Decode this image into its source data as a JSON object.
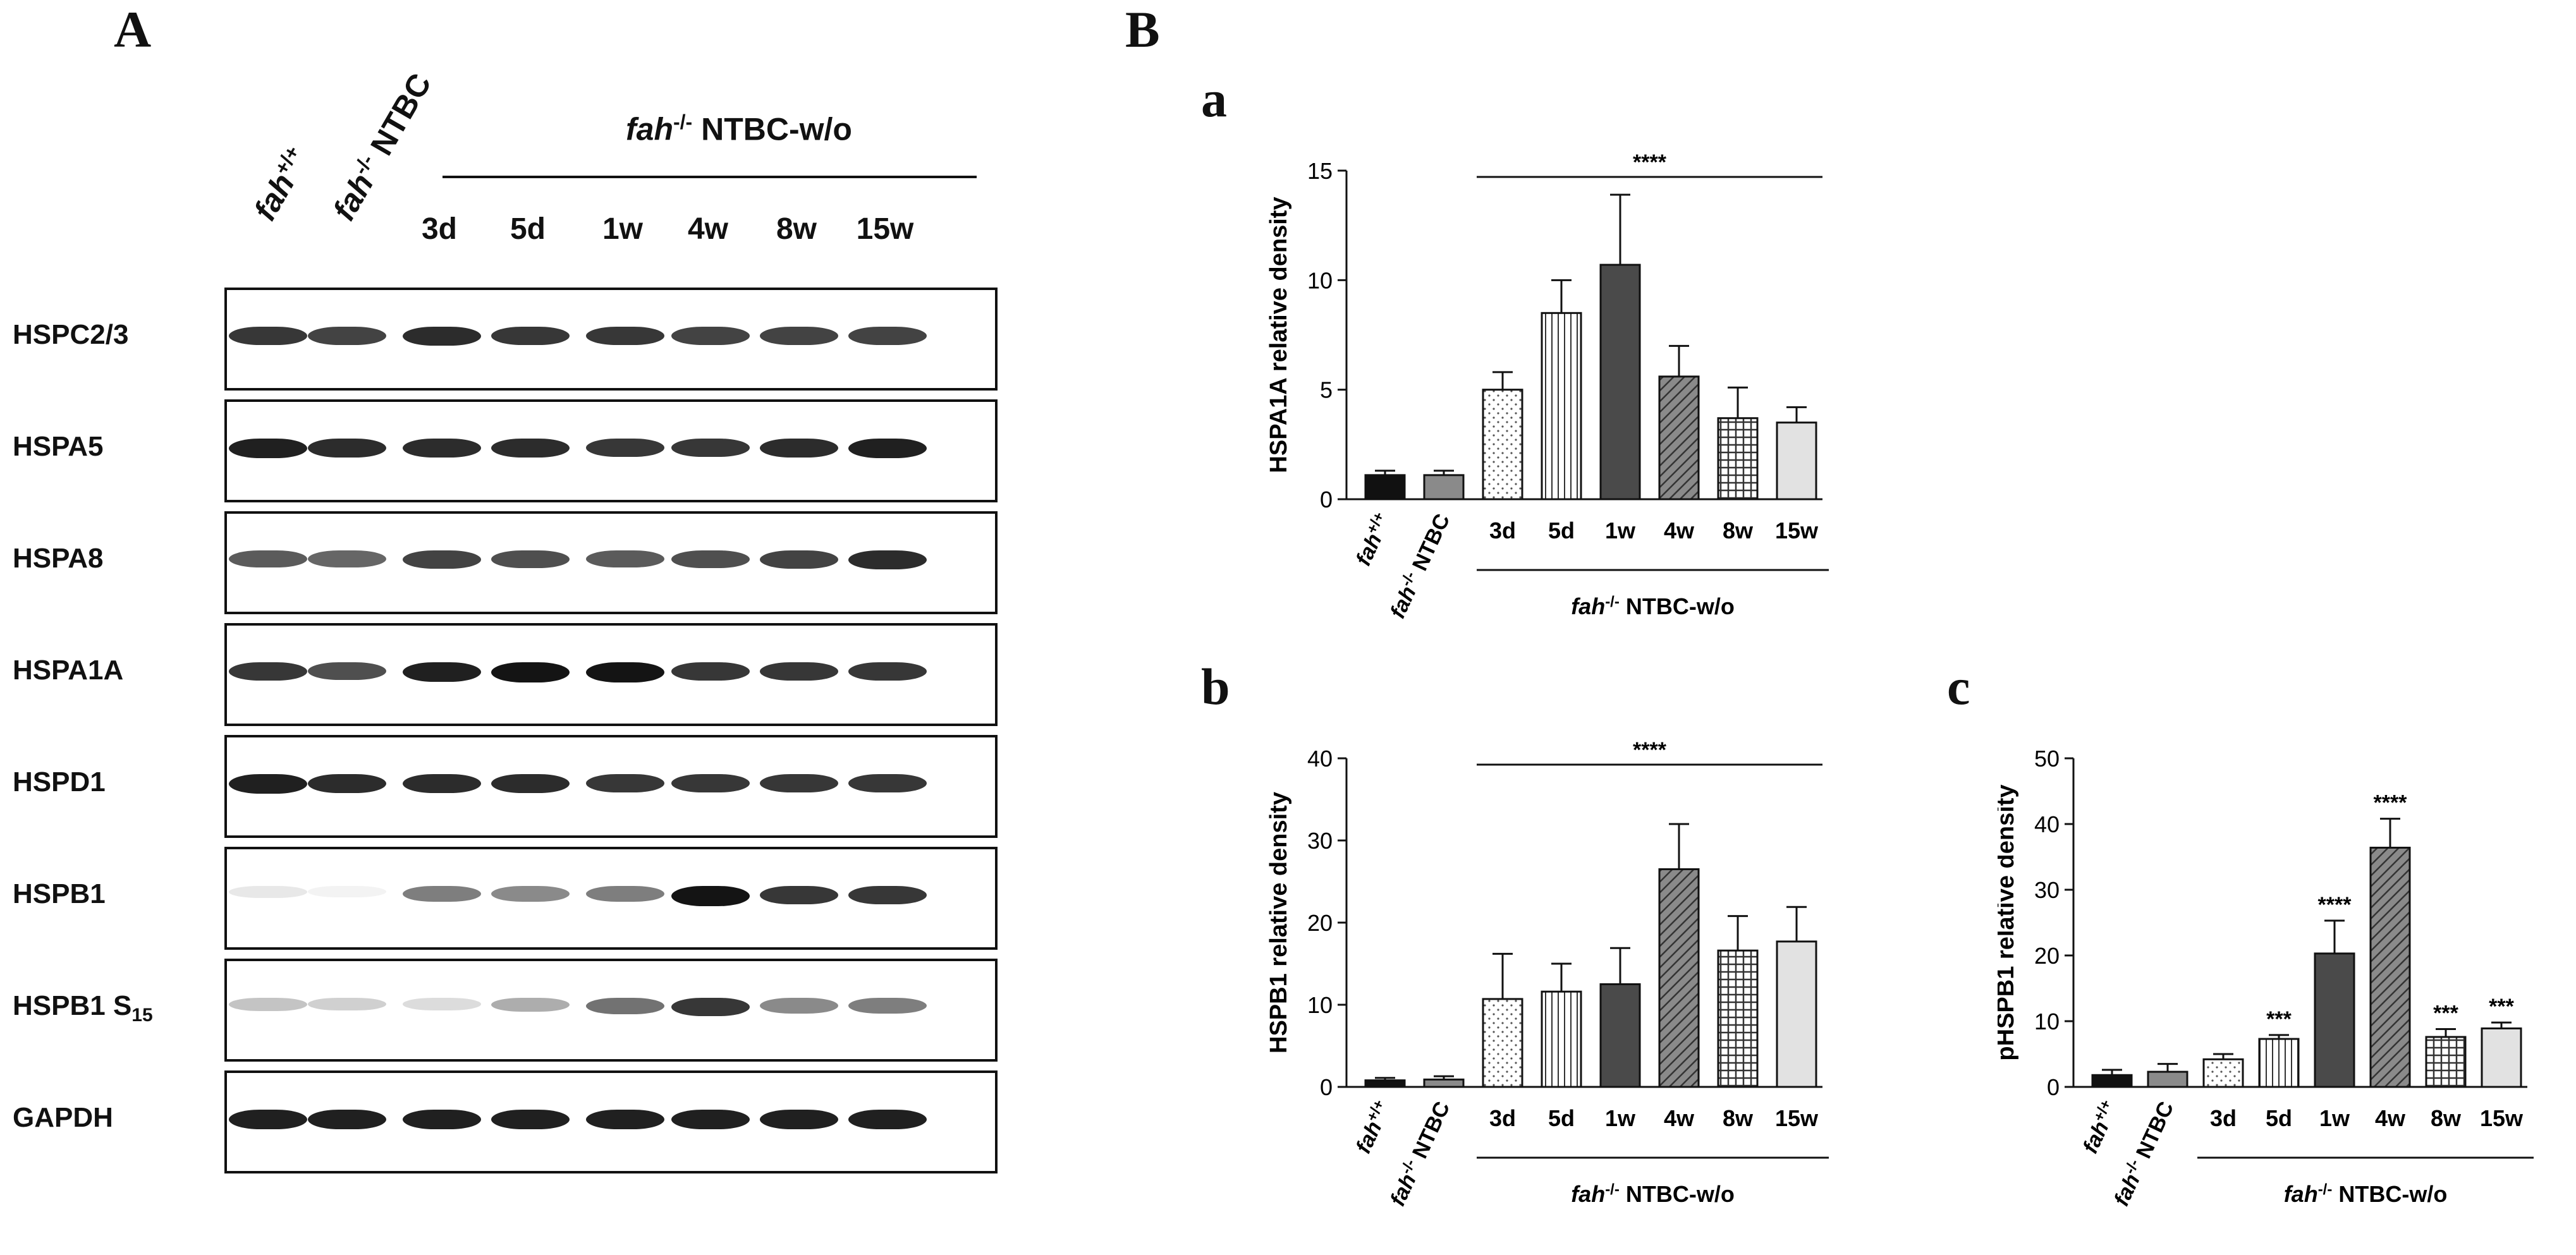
{
  "panel_labels": {
    "A": "A",
    "B": "B",
    "a": "a",
    "b": "b",
    "c": "c"
  },
  "blot": {
    "lane_labels": [
      "fah+/+",
      "fah-/- NTBC"
    ],
    "group_label": "fah-/- NTBC-w/o",
    "timepoints": [
      "3d",
      "5d",
      "1w",
      "4w",
      "8w",
      "15w"
    ],
    "proteins": [
      "HSPC2/3",
      "HSPA5",
      "HSPA8",
      "HSPA1A",
      "HSPD1",
      "HSPB1",
      "HSPB1 S15",
      "GAPDH"
    ],
    "band_intensity": [
      [
        0.85,
        0.8,
        0.9,
        0.85,
        0.85,
        0.8,
        0.8,
        0.8
      ],
      [
        0.95,
        0.9,
        0.9,
        0.9,
        0.85,
        0.85,
        0.9,
        0.95
      ],
      [
        0.7,
        0.65,
        0.8,
        0.75,
        0.7,
        0.75,
        0.8,
        0.9
      ],
      [
        0.85,
        0.75,
        0.95,
        1.0,
        1.0,
        0.85,
        0.85,
        0.85
      ],
      [
        0.95,
        0.9,
        0.9,
        0.9,
        0.85,
        0.85,
        0.85,
        0.85
      ],
      [
        0.1,
        0.05,
        0.55,
        0.5,
        0.55,
        1.0,
        0.85,
        0.85
      ],
      [
        0.25,
        0.2,
        0.15,
        0.35,
        0.6,
        0.85,
        0.5,
        0.55
      ],
      [
        0.95,
        0.95,
        0.95,
        0.95,
        0.95,
        0.95,
        0.95,
        0.95
      ]
    ]
  },
  "chart_data": [
    {
      "type": "bar",
      "panel": "a",
      "categories": [
        "fah+/+",
        "fah-/- NTBC",
        "3d",
        "5d",
        "1w",
        "4w",
        "8w",
        "15w"
      ],
      "values": [
        1.1,
        1.1,
        5.0,
        8.5,
        10.7,
        5.6,
        3.7,
        3.5
      ],
      "errors": [
        0.2,
        0.2,
        0.8,
        1.5,
        3.2,
        1.4,
        1.4,
        0.7
      ],
      "ylabel": "HSPA1A relative density",
      "ylim": [
        0,
        15
      ],
      "yticks": [
        0,
        5,
        10,
        15
      ],
      "group_label": "fah-/- NTBC-w/o",
      "significance": "****",
      "bar_annotations": []
    },
    {
      "type": "bar",
      "panel": "b",
      "categories": [
        "fah+/+",
        "fah-/- NTBC",
        "3d",
        "5d",
        "1w",
        "4w",
        "8w",
        "15w"
      ],
      "values": [
        0.8,
        0.9,
        10.7,
        11.6,
        12.5,
        26.5,
        16.6,
        17.7
      ],
      "errors": [
        0.3,
        0.4,
        5.5,
        3.4,
        4.4,
        5.5,
        4.2,
        4.2
      ],
      "ylabel": "HSPB1 relative density",
      "ylim": [
        0,
        40
      ],
      "yticks": [
        0,
        10,
        20,
        30,
        40
      ],
      "group_label": "fah-/- NTBC-w/o",
      "significance": "****",
      "bar_annotations": []
    },
    {
      "type": "bar",
      "panel": "c",
      "categories": [
        "fah+/+",
        "fah-/- NTBC",
        "3d",
        "5d",
        "1w",
        "4w",
        "8w",
        "15w"
      ],
      "values": [
        1.8,
        2.3,
        4.2,
        7.3,
        20.3,
        36.4,
        7.6,
        8.9
      ],
      "errors": [
        0.8,
        1.2,
        0.8,
        0.6,
        5.0,
        4.4,
        1.2,
        0.9
      ],
      "ylabel": "pHSPB1 relative density",
      "ylim": [
        0,
        50
      ],
      "yticks": [
        0,
        10,
        20,
        30,
        40,
        50
      ],
      "group_label": "fah-/- NTBC-w/o",
      "significance": "",
      "bar_annotations": [
        "",
        "",
        "",
        "***",
        "****",
        "****",
        "***",
        "***"
      ]
    }
  ],
  "colors": {
    "wt": "#111111",
    "ntbc": "#8a8a8a",
    "3d": "#ffffff",
    "5d": "#ffffff",
    "1w": "#4a4a4a",
    "4w": "#6e6e6e",
    "8w": "#ffffff",
    "15w": "#e2e2e2"
  }
}
